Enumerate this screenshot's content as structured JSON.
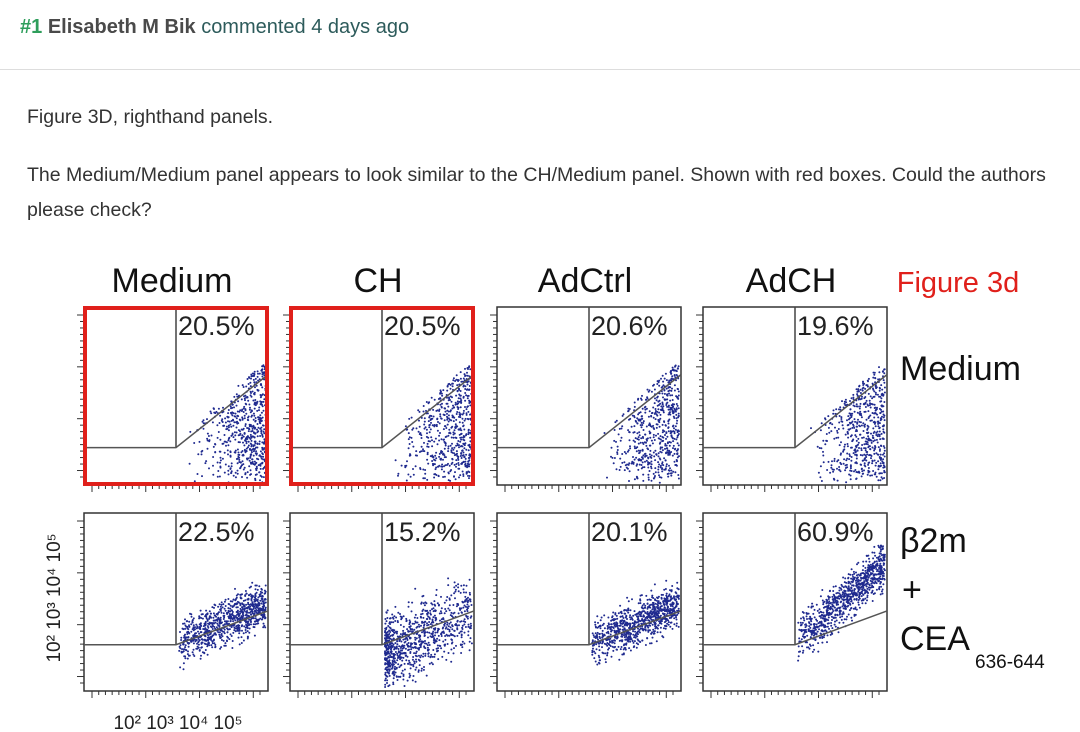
{
  "comment": {
    "number": "#1",
    "author": "Elisabeth M Bik",
    "action": "commented 4 days ago",
    "paragraphs": [
      "Figure 3D, righthand panels.",
      "The Medium/Medium panel appears to look similar to the CH/Medium panel. Shown with red boxes. Could the authors please check?"
    ]
  },
  "figure": {
    "title": "Figure 3d",
    "columns": [
      "Medium",
      "CH",
      "AdCtrl",
      "AdCH"
    ],
    "rows": [
      {
        "label_lines": [
          "Medium"
        ],
        "panels": [
          {
            "percent": "20.5%",
            "highlighted": true
          },
          {
            "percent": "20.5%",
            "highlighted": true
          },
          {
            "percent": "20.6%",
            "highlighted": false
          },
          {
            "percent": "19.6%",
            "highlighted": false
          }
        ]
      },
      {
        "label_lines": [
          "β2m",
          "+",
          "CEA"
        ],
        "subscript": "636-644",
        "panels": [
          {
            "percent": "22.5%",
            "highlighted": false
          },
          {
            "percent": "15.2%",
            "highlighted": false
          },
          {
            "percent": "20.1%",
            "highlighted": false
          },
          {
            "percent": "60.9%",
            "highlighted": false
          }
        ]
      }
    ],
    "y_axis_label": "10² 10³ 10⁴ 10⁵",
    "x_axis_label": "10² 10³ 10⁴ 10⁵"
  }
}
